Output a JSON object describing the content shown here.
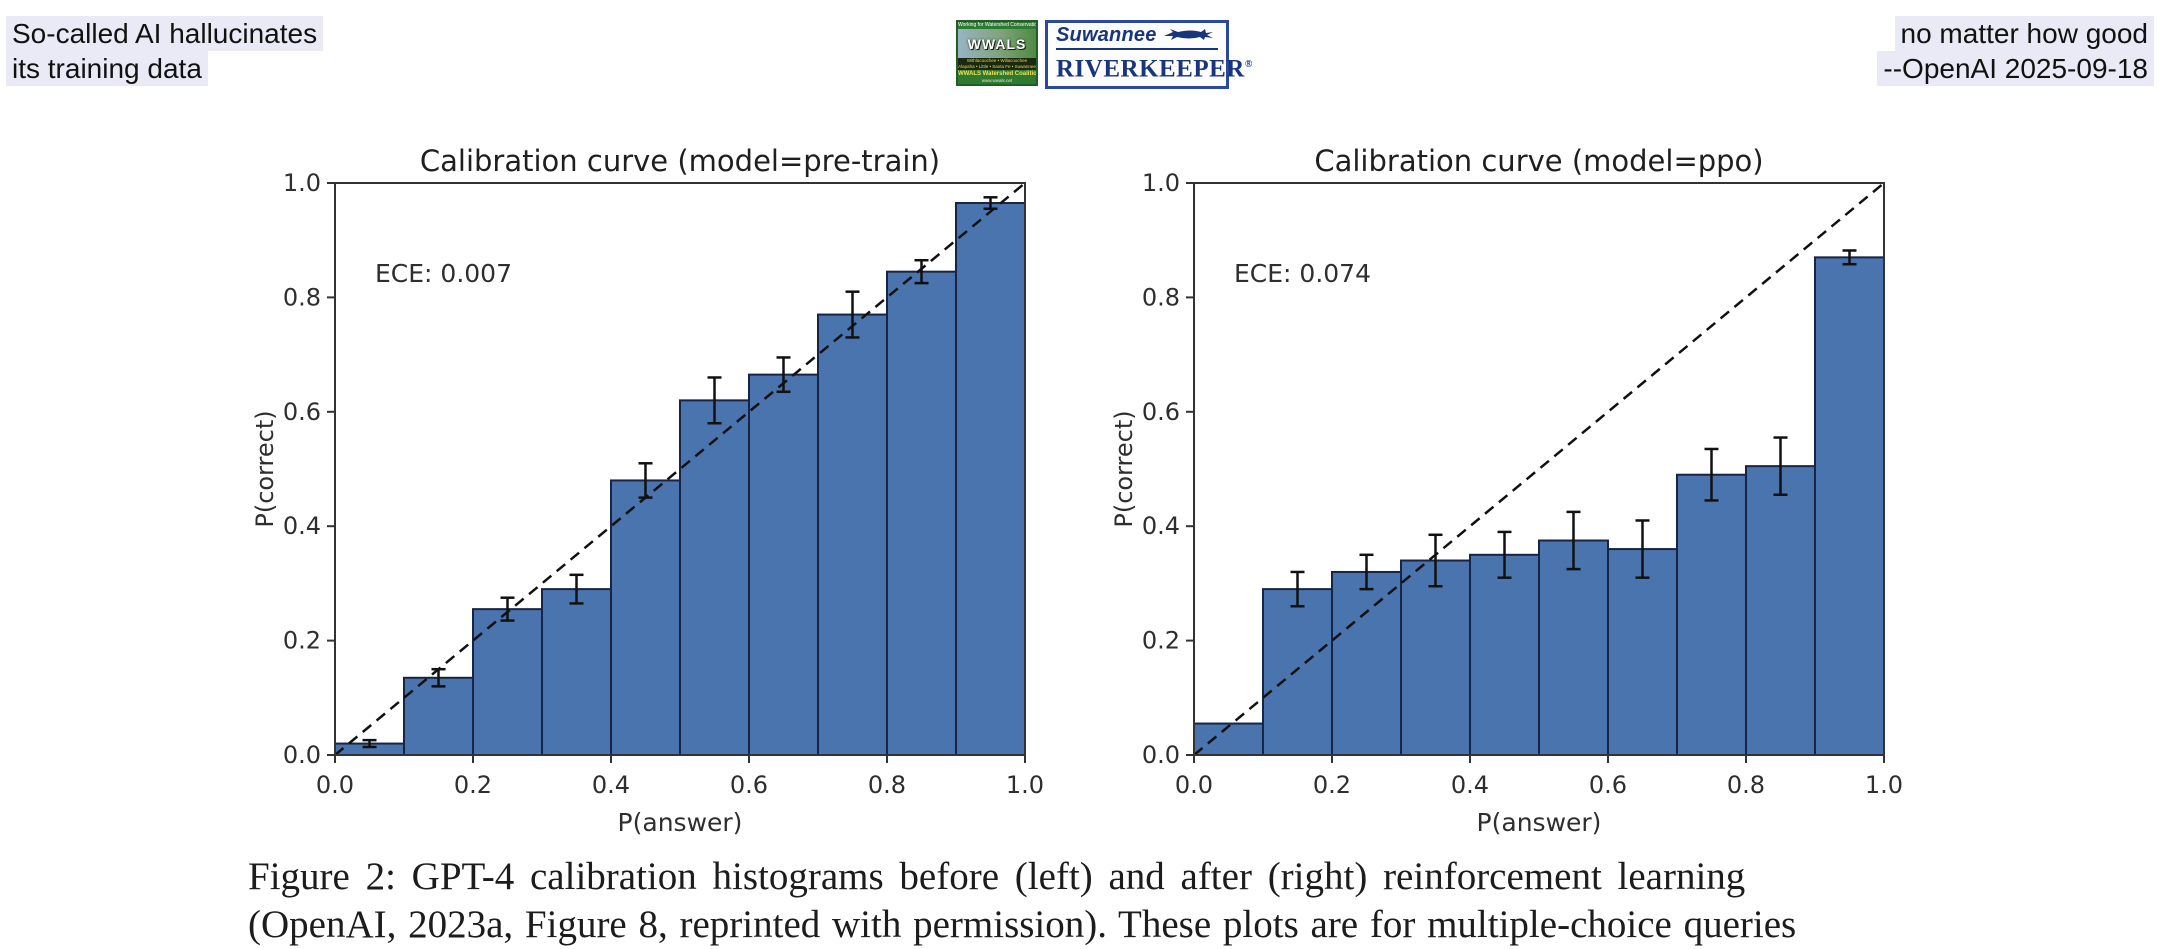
{
  "header": {
    "left_note": {
      "line1": "So-called AI hallucinates",
      "line2": "its training data"
    },
    "right_note": {
      "line1": "no matter how good",
      "line2": "--OpenAI 2025-09-18"
    },
    "highlight_color": "#e9eaf6",
    "logo": {
      "wwals": {
        "top_text": "Working for Watershed Conservation",
        "name": "WWALS",
        "rivers_line1": "Withlacoochee • Willacoochee",
        "rivers_line2": "Alapaha • Little • Santa Fe • Suwannee",
        "coalition": "WWALS Watershed Coalition",
        "url": "www.wwals.net"
      },
      "riverkeeper": {
        "line1": "Suwannee",
        "line2": "RIVERKEEPER",
        "registered": "®",
        "border_color": "#2b4a9e",
        "text_color": "#17367c"
      }
    }
  },
  "figure": {
    "caption_line1": "Figure 2:  GPT-4 calibration histograms before (left) and after (right) reinforcement learning",
    "caption_line2": "(OpenAI, 2023a, Figure 8, reprinted with permission). These plots are for multiple-choice queries"
  },
  "chart_data": [
    {
      "type": "bar",
      "title": "Calibration curve (model=pre-train)",
      "annotation": "ECE: 0.007",
      "xlabel": "P(answer)",
      "ylabel": "P(correct)",
      "xlim": [
        0.0,
        1.0
      ],
      "ylim": [
        0.0,
        1.0
      ],
      "xticks": [
        "0.0",
        "0.2",
        "0.4",
        "0.6",
        "0.8",
        "1.0"
      ],
      "yticks": [
        "0.0",
        "0.2",
        "0.4",
        "0.6",
        "0.8",
        "1.0"
      ],
      "grid": false,
      "bin_width": 0.1,
      "categories": [
        "0.0-0.1",
        "0.1-0.2",
        "0.2-0.3",
        "0.3-0.4",
        "0.4-0.5",
        "0.5-0.6",
        "0.6-0.7",
        "0.7-0.8",
        "0.8-0.9",
        "0.9-1.0"
      ],
      "values": [
        0.02,
        0.135,
        0.255,
        0.29,
        0.48,
        0.62,
        0.665,
        0.77,
        0.845,
        0.965
      ],
      "errors": [
        0.006,
        0.015,
        0.02,
        0.025,
        0.03,
        0.04,
        0.03,
        0.04,
        0.02,
        0.01
      ],
      "diagonal": {
        "style": "dashed",
        "from": [
          0,
          0
        ],
        "to": [
          1,
          1
        ]
      },
      "bar_fill": "#4a74ae",
      "bar_edge": "#172445",
      "axis_color": "#333333",
      "text_color": "#2e2e2e"
    },
    {
      "type": "bar",
      "title": "Calibration curve (model=ppo)",
      "annotation": "ECE: 0.074",
      "xlabel": "P(answer)",
      "ylabel": "P(correct)",
      "xlim": [
        0.0,
        1.0
      ],
      "ylim": [
        0.0,
        1.0
      ],
      "xticks": [
        "0.0",
        "0.2",
        "0.4",
        "0.6",
        "0.8",
        "1.0"
      ],
      "yticks": [
        "0.0",
        "0.2",
        "0.4",
        "0.6",
        "0.8",
        "1.0"
      ],
      "grid": false,
      "bin_width": 0.1,
      "categories": [
        "0.0-0.1",
        "0.1-0.2",
        "0.2-0.3",
        "0.3-0.4",
        "0.4-0.5",
        "0.5-0.6",
        "0.6-0.7",
        "0.7-0.8",
        "0.8-0.9",
        "0.9-1.0"
      ],
      "values": [
        0.055,
        0.29,
        0.32,
        0.34,
        0.35,
        0.375,
        0.36,
        0.49,
        0.505,
        0.87
      ],
      "errors": [
        0,
        0.03,
        0.03,
        0.045,
        0.04,
        0.05,
        0.05,
        0.045,
        0.05,
        0.012
      ],
      "diagonal": {
        "style": "dashed",
        "from": [
          0,
          0
        ],
        "to": [
          1,
          1
        ]
      },
      "bar_fill": "#4a74ae",
      "bar_edge": "#172445",
      "axis_color": "#333333",
      "text_color": "#2e2e2e"
    }
  ]
}
